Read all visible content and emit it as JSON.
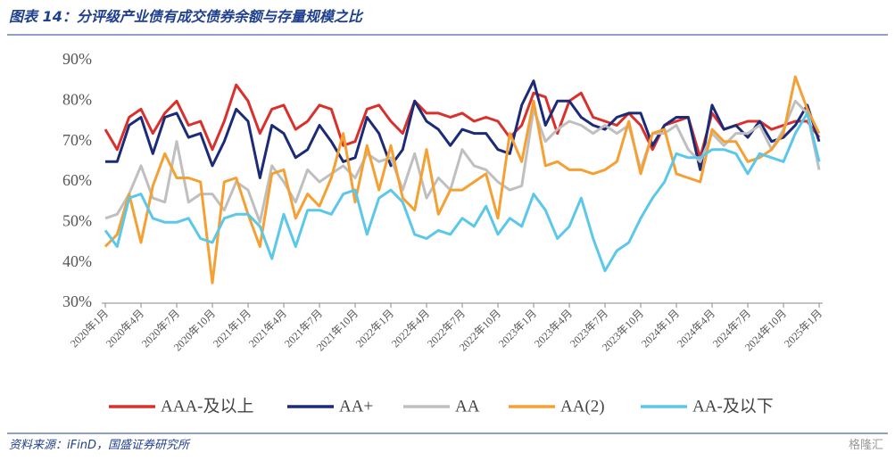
{
  "title": "图表 14：分评级产业债有成交债券余额与存量规模之比",
  "source": "资料来源：iFinD，国盛证券研究所",
  "watermark": "格隆汇",
  "chart_data": {
    "type": "line",
    "categories": [
      "2020年1月",
      null,
      null,
      "2020年4月",
      null,
      null,
      "2020年7月",
      null,
      null,
      "2020年10月",
      null,
      null,
      "2021年1月",
      null,
      null,
      "2021年4月",
      null,
      null,
      "2021年7月",
      null,
      null,
      "2021年10月",
      null,
      null,
      "2022年1月",
      null,
      null,
      "2022年4月",
      null,
      null,
      "2022年7月",
      null,
      null,
      "2022年10月",
      null,
      null,
      "2023年1月",
      null,
      null,
      "2023年4月",
      null,
      null,
      "2023年7月",
      null,
      null,
      "2023年10月",
      null,
      null,
      "2024年1月",
      null,
      null,
      "2024年4月",
      null,
      null,
      "2024年7月",
      null,
      null,
      "2024年10月",
      null,
      null,
      "2025年1月"
    ],
    "ylim": [
      30,
      90
    ],
    "yticks": [
      {
        "value": 30,
        "label": "30%"
      },
      {
        "value": 40,
        "label": "40%"
      },
      {
        "value": 50,
        "label": "50%"
      },
      {
        "value": 60,
        "label": "60%"
      },
      {
        "value": 70,
        "label": "70%"
      },
      {
        "value": 80,
        "label": "80%"
      },
      {
        "value": 90,
        "label": "90%"
      }
    ],
    "series": [
      {
        "name": "AAA-及以上",
        "color": "#d9302c",
        "values": [
          73,
          68,
          76,
          78,
          72,
          77,
          80,
          74,
          75,
          68,
          75,
          84,
          80,
          72,
          78,
          79,
          73,
          75,
          79,
          78,
          69,
          70,
          78,
          79,
          75,
          72,
          80,
          77,
          77,
          76,
          77,
          75,
          76,
          75,
          71,
          74,
          82,
          81,
          72,
          80,
          82,
          76,
          75,
          74,
          77,
          74,
          68,
          74,
          75,
          76,
          66,
          77,
          73,
          74,
          75,
          75,
          73,
          74,
          75,
          75,
          71
        ]
      },
      {
        "name": "AA+",
        "color": "#1c2b78",
        "values": [
          65,
          65,
          74,
          76,
          67,
          76,
          77,
          71,
          72,
          64,
          70,
          78,
          75,
          61,
          74,
          72,
          66,
          68,
          74,
          70,
          65,
          66,
          76,
          72,
          64,
          68,
          80,
          75,
          73,
          69,
          73,
          72,
          72,
          68,
          67,
          79,
          85,
          74,
          80,
          80,
          76,
          74,
          73,
          76,
          77,
          77,
          69,
          74,
          76,
          76,
          63,
          79,
          73,
          74,
          71,
          75,
          70,
          71,
          74,
          79,
          70
        ]
      },
      {
        "name": "AA",
        "color": "#bfbfbf",
        "values": [
          51,
          52,
          57,
          64,
          56,
          55,
          70,
          55,
          57,
          57,
          53,
          60,
          58,
          50,
          64,
          60,
          55,
          63,
          60,
          62,
          64,
          61,
          67,
          65,
          66,
          58,
          67,
          56,
          61,
          58,
          68,
          64,
          63,
          60,
          58,
          59,
          78,
          70,
          73,
          75,
          74,
          72,
          74,
          72,
          74,
          63,
          72,
          72,
          74,
          68,
          65,
          72,
          69,
          72,
          72,
          74,
          68,
          73,
          80,
          77,
          63
        ]
      },
      {
        "name": "AA(2)",
        "color": "#f5a033",
        "values": [
          44,
          47,
          57,
          45,
          59,
          67,
          61,
          61,
          60,
          35,
          60,
          61,
          52,
          44,
          62,
          63,
          51,
          57,
          54,
          61,
          72,
          55,
          69,
          58,
          69,
          56,
          53,
          68,
          52,
          58,
          58,
          60,
          62,
          51,
          72,
          65,
          80,
          64,
          65,
          63,
          63,
          62,
          63,
          65,
          75,
          62,
          72,
          73,
          62,
          61,
          60,
          73,
          70,
          70,
          65,
          66,
          68,
          72,
          86,
          78,
          72
        ]
      },
      {
        "name": "AA-及以下",
        "color": "#5bc8ea",
        "values": [
          48,
          44,
          56,
          57,
          51,
          50,
          50,
          51,
          46,
          45,
          51,
          52,
          52,
          49,
          41,
          52,
          44,
          53,
          53,
          52,
          57,
          58,
          47,
          56,
          58,
          55,
          47,
          46,
          48,
          47,
          51,
          49,
          54,
          47,
          51,
          49,
          57,
          53,
          46,
          49,
          56,
          46,
          38,
          43,
          45,
          51,
          56,
          60,
          67,
          66,
          66,
          68,
          68,
          67,
          62,
          67,
          66,
          65,
          72,
          77,
          65
        ]
      }
    ]
  }
}
